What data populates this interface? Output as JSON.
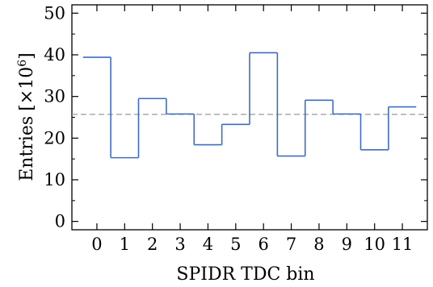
{
  "chart_data": {
    "type": "line",
    "step": true,
    "xlabel": "SPIDR TDC bin",
    "ylabel_main": "Entries",
    "ylabel_unit_prefix": "[×10",
    "ylabel_unit_exp": "6",
    "ylabel_unit_suffix": "]",
    "categories": [
      "0",
      "1",
      "2",
      "3",
      "4",
      "5",
      "6",
      "7",
      "8",
      "9",
      "10",
      "11"
    ],
    "values": [
      39.4,
      15.3,
      29.5,
      25.8,
      18.4,
      23.3,
      40.5,
      15.7,
      29.1,
      25.8,
      17.2,
      27.5
    ],
    "reference_line": 25.7,
    "ylim": [
      -2,
      52
    ],
    "xlim": [
      -0.9,
      11.9
    ],
    "yticks": [
      0,
      10,
      20,
      30,
      40,
      50
    ],
    "ytick_labels": [
      "0",
      "10",
      "20",
      "30",
      "40",
      "50"
    ],
    "grid": false,
    "colors": {
      "line": "#3f6cc0",
      "reference": "#9a9a9a",
      "axis": "#000000"
    }
  }
}
